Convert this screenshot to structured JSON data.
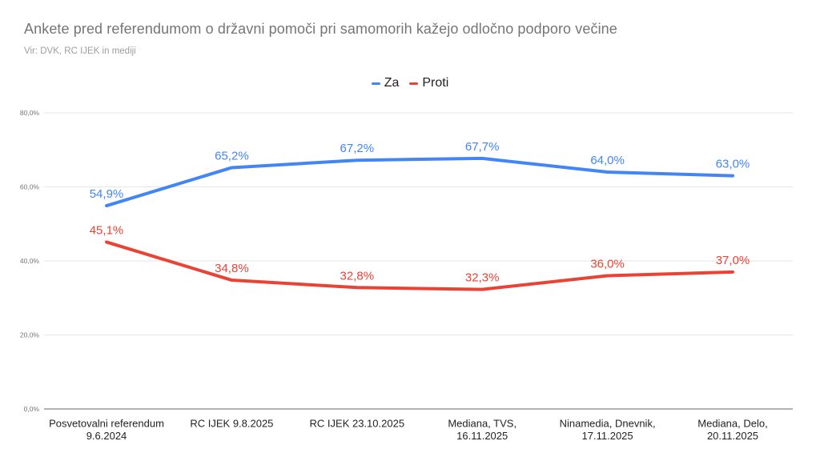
{
  "chart_data": {
    "type": "line",
    "title": "Ankete pred referendumom o državni pomoči pri samomorih kažejo odločno podporo večine",
    "subtitle": "Vir: DVK, RC IJEK in mediji",
    "legend_position": "top",
    "grid": true,
    "categories": [
      [
        "Posvetovalni referendum",
        "9.6.2024"
      ],
      [
        "RC IJEK 9.8.2025"
      ],
      [
        "RC IJEK 23.10.2025"
      ],
      [
        "Mediana, TVS,",
        "16.11.2025"
      ],
      [
        "Ninamedia, Dnevnik,",
        "17.11.2025"
      ],
      [
        "Mediana, Delo,",
        "20.11.2025"
      ]
    ],
    "series": [
      {
        "name": "Za",
        "color": "#4285f4",
        "values": [
          54.9,
          65.2,
          67.2,
          67.7,
          64.0,
          63.0
        ],
        "labels": [
          "54,9%",
          "65,2%",
          "67,2%",
          "67,7%",
          "64,0%",
          "63,0%"
        ]
      },
      {
        "name": "Proti",
        "color": "#ea4335",
        "values": [
          45.1,
          34.8,
          32.8,
          32.3,
          36.0,
          37.0
        ],
        "labels": [
          "45,1%",
          "34,8%",
          "32,8%",
          "32,3%",
          "36,0%",
          "37,0%"
        ]
      }
    ],
    "y_axis": {
      "ylim": [
        0,
        80
      ],
      "ticks": [
        0,
        20,
        40,
        60,
        80
      ],
      "tick_labels": [
        "0,0%",
        "20,0%",
        "40,0%",
        "60,0%",
        "80,0%"
      ]
    }
  }
}
